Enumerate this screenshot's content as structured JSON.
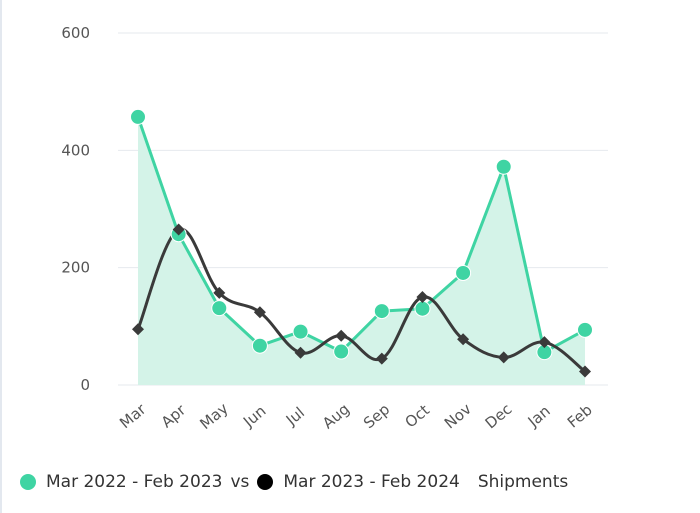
{
  "colors": {
    "series_a": "#3fd4a3",
    "series_a_fill": "#d4f3e8",
    "series_b": "#3a3a3a",
    "grid": "#e6e9ee"
  },
  "legend": {
    "series_a_label": "Mar 2022 - Feb 2023",
    "vs_label": "vs",
    "series_b_label": "Mar 2023 - Feb 2024",
    "suffix_label": "Shipments"
  },
  "chart_data": {
    "type": "line",
    "title": "",
    "xlabel": "",
    "ylabel": "",
    "ylim": [
      0,
      600
    ],
    "yticks": [
      0,
      200,
      400,
      600
    ],
    "grid": true,
    "legend_position": "bottom",
    "categories": [
      "Mar",
      "Apr",
      "May",
      "Jun",
      "Jul",
      "Aug",
      "Sep",
      "Oct",
      "Nov",
      "Dec",
      "Jan",
      "Feb"
    ],
    "series": [
      {
        "name": "Mar 2022 - Feb 2023",
        "style": "area-with-circles",
        "values": [
          457,
          257,
          131,
          67,
          91,
          57,
          126,
          130,
          191,
          372,
          56,
          94
        ]
      },
      {
        "name": "Mar 2023 - Feb 2024",
        "style": "smooth-line-with-diamonds",
        "values": [
          95,
          265,
          157,
          124,
          55,
          84,
          45,
          150,
          78,
          47,
          73,
          23
        ]
      }
    ]
  }
}
